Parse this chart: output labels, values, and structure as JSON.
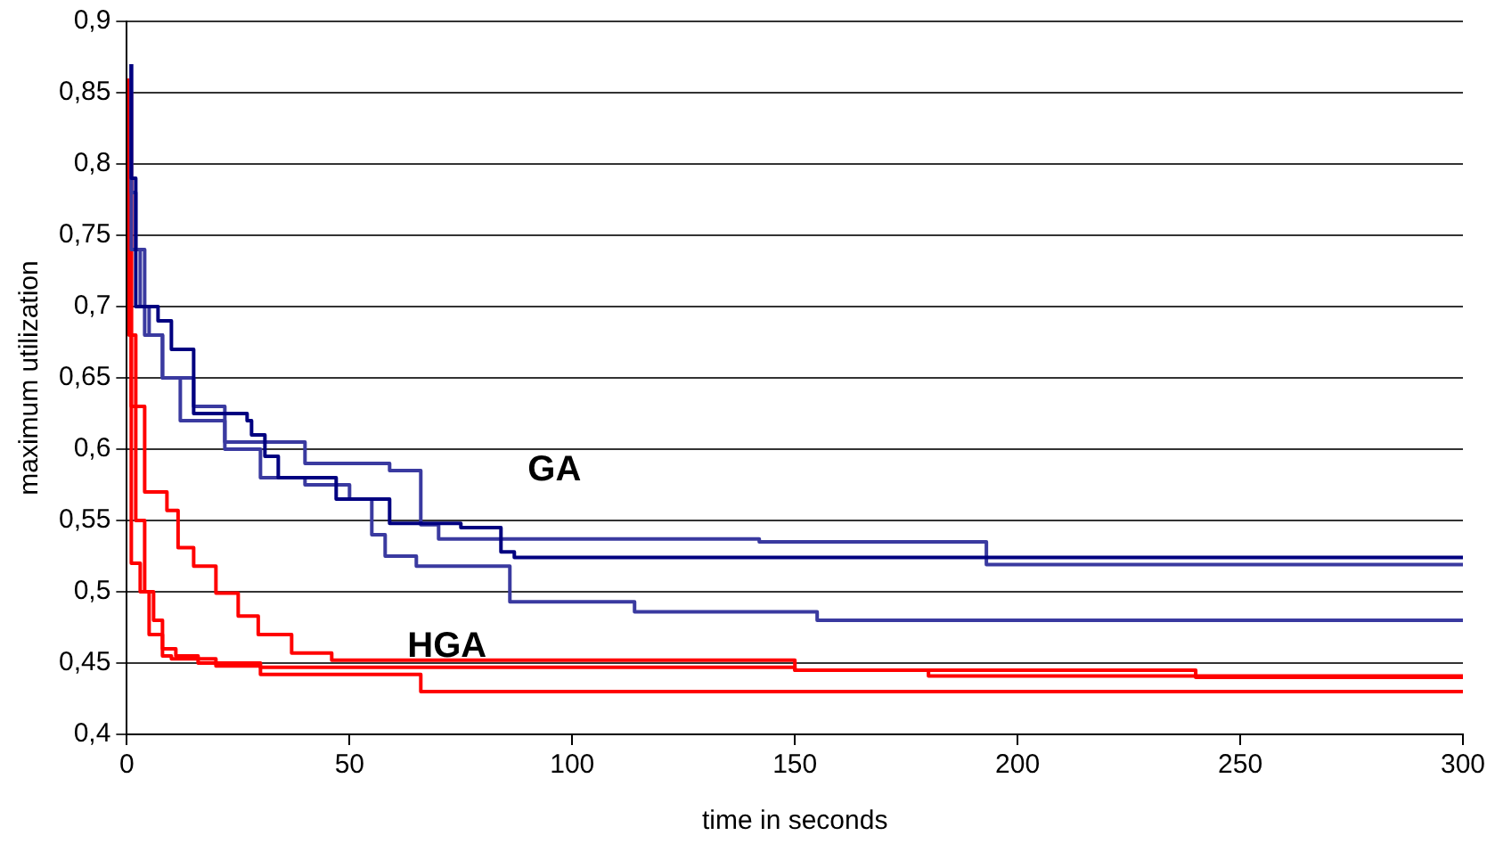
{
  "chart_data": {
    "type": "step",
    "xlabel": "time in seconds",
    "ylabel": "maximum utilization",
    "xlim": [
      0,
      300
    ],
    "xticks": [
      0,
      50,
      100,
      150,
      200,
      250,
      300
    ],
    "ylim": [
      0.4,
      0.9
    ],
    "yticks": [
      {
        "value": 0.4,
        "label": "0,4"
      },
      {
        "value": 0.45,
        "label": "0,45"
      },
      {
        "value": 0.5,
        "label": "0,5"
      },
      {
        "value": 0.55,
        "label": "0,55"
      },
      {
        "value": 0.6,
        "label": "0,6"
      },
      {
        "value": 0.65,
        "label": "0,65"
      },
      {
        "value": 0.7,
        "label": "0,7"
      },
      {
        "value": 0.75,
        "label": "0,75"
      },
      {
        "value": 0.8,
        "label": "0,8"
      },
      {
        "value": 0.85,
        "label": "0,85"
      },
      {
        "value": 0.9,
        "label": "0,9"
      }
    ],
    "grid": "y",
    "legend": false,
    "marker": "none",
    "line_style": "solid",
    "annotations": [
      "GA",
      "HGA"
    ],
    "series": [
      {
        "color": "#000080",
        "x": [
          1,
          2,
          7,
          10,
          15,
          27,
          28,
          31,
          34,
          47,
          59,
          75,
          84,
          87,
          190,
          300
        ],
        "values": [
          0.87,
          0.79,
          0.7,
          0.69,
          0.67,
          0.625,
          0.62,
          0.61,
          0.595,
          0.58,
          0.565,
          0.548,
          0.545,
          0.528,
          0.524,
          0.524
        ]
      },
      {
        "color": "#3a3aa0",
        "x": [
          1,
          3,
          5,
          8,
          15,
          22,
          40,
          52,
          59,
          66,
          70,
          142,
          193,
          207,
          300
        ],
        "values": [
          0.87,
          0.74,
          0.7,
          0.68,
          0.65,
          0.63,
          0.605,
          0.59,
          0.59,
          0.585,
          0.547,
          0.537,
          0.535,
          0.519,
          0.519
        ]
      },
      {
        "color": "#3a3aa0",
        "x": [
          1,
          2,
          4,
          8,
          12,
          22,
          30,
          40,
          50,
          55,
          58,
          65,
          86,
          114,
          155,
          189,
          300
        ],
        "values": [
          0.87,
          0.78,
          0.74,
          0.68,
          0.65,
          0.62,
          0.6,
          0.58,
          0.575,
          0.565,
          0.54,
          0.525,
          0.518,
          0.493,
          0.486,
          0.48,
          0.48
        ]
      },
      {
        "color": "#ff0000",
        "x": [
          1,
          4,
          9,
          11.5,
          15,
          20,
          25,
          29.5,
          37,
          46,
          150,
          240,
          300
        ],
        "values": [
          0.79,
          0.63,
          0.57,
          0.557,
          0.531,
          0.518,
          0.499,
          0.483,
          0.47,
          0.457,
          0.452,
          0.445,
          0.44
        ]
      },
      {
        "color": "#ff0000",
        "x": [
          1,
          3,
          5,
          8,
          10,
          20,
          30,
          66,
          145,
          300
        ],
        "values": [
          0.85,
          0.52,
          0.5,
          0.47,
          0.455,
          0.453,
          0.45,
          0.442,
          0.43,
          0.43
        ]
      },
      {
        "color": "#ff0000",
        "x": [
          0.5,
          2,
          4,
          6,
          8,
          11,
          16,
          20,
          30,
          150,
          180,
          300
        ],
        "values": [
          0.86,
          0.68,
          0.55,
          0.5,
          0.48,
          0.46,
          0.455,
          0.45,
          0.448,
          0.447,
          0.445,
          0.441
        ]
      }
    ]
  }
}
